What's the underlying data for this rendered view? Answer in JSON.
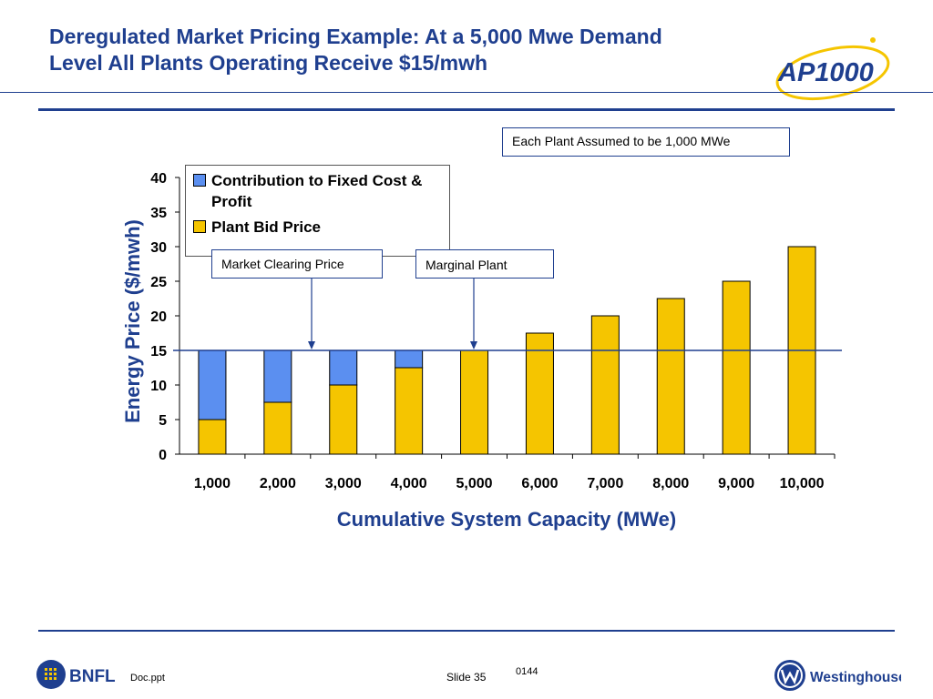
{
  "slide": {
    "title_line1": "Deregulated Market Pricing Example:  At a 5,000 Mwe Demand",
    "title_line2": "Level All Plants Operating Receive $15/mwh",
    "logo_text": "AP1000",
    "doc_label": "Doc.ppt",
    "slide_label": "Slide 35",
    "page_code": "0144",
    "bnfl_text": "BNFL",
    "westinghouse_text": "Westinghouse"
  },
  "annotations": {
    "assumption": "Each Plant Assumed to be 1,000 MWe",
    "market_clearing": "Market Clearing Price",
    "marginal_plant": "Marginal Plant"
  },
  "colors": {
    "title": "#1f3f8f",
    "contribution": "#5b8ff0",
    "bid": "#f5c500",
    "axis": "#000000"
  },
  "chart_data": {
    "type": "bar",
    "stacked": true,
    "categories": [
      "1,000",
      "2,000",
      "3,000",
      "4,000",
      "5,000",
      "6,000",
      "7,000",
      "8,000",
      "9,000",
      "10,000"
    ],
    "series": [
      {
        "name": "Plant Bid Price",
        "values": [
          5,
          7.5,
          10,
          12.5,
          15,
          17.5,
          20,
          22.5,
          25,
          30
        ]
      },
      {
        "name": "Contribution to Fixed Cost & Profit",
        "values": [
          10,
          7.5,
          5,
          2.5,
          0,
          0,
          0,
          0,
          0,
          0
        ]
      }
    ],
    "legend": [
      "Contribution to Fixed Cost & Profit",
      "Plant Bid Price"
    ],
    "xlabel": "Cumulative System Capacity (MWe)",
    "ylabel": "Energy Price ($/mwh)",
    "ylim": [
      0,
      40
    ],
    "yticks": [
      "0",
      "5",
      "10",
      "15",
      "20",
      "25",
      "30",
      "35",
      "40"
    ],
    "clearing_price": 15,
    "annotation_targets": {
      "market_clearing": "3,000",
      "marginal_plant": "5,000"
    }
  }
}
